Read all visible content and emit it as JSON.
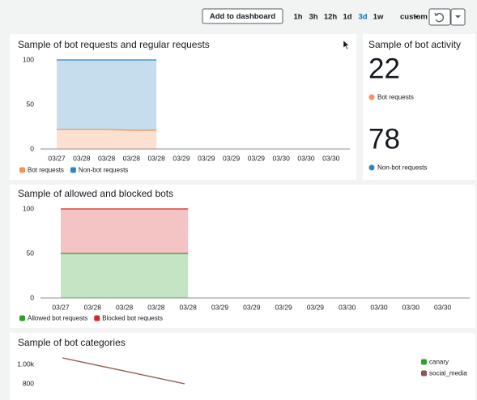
{
  "toolbar": {
    "button": "Add to dashboard",
    "ranges": [
      "1h",
      "3h",
      "12h",
      "1d",
      "3d",
      "1w",
      "custom"
    ],
    "active": 4
  },
  "widgets": [
    {
      "title": "Sample of bot requests and regular requests",
      "chart_data": {
        "type": "area",
        "stacked": true,
        "categories": [
          "03/27",
          "03/28",
          "03/28",
          "03/28",
          "03/28",
          "03/29",
          "03/29",
          "03/29",
          "03/29",
          "03/30",
          "03/30",
          "03/30"
        ],
        "series": [
          {
            "name": "Bot requests",
            "color": "#f89256",
            "values": [
              22,
              22,
              22,
              21,
              21,
              null,
              null,
              null,
              null,
              null,
              null,
              null
            ]
          },
          {
            "name": "Non-bot requests",
            "color": "#3184c2",
            "values": [
              78,
              78,
              78,
              79,
              79,
              null,
              null,
              null,
              null,
              null,
              null,
              null
            ]
          }
        ],
        "ylim": [
          0,
          100
        ],
        "yticks": [
          0,
          50,
          100
        ],
        "grid": false,
        "legend": "bottom"
      }
    },
    {
      "title": "Sample of bot activity",
      "stats": [
        {
          "value": 22,
          "label": "Bot requests",
          "color": "#f89256"
        },
        {
          "value": 78,
          "label": "Non-bot requests",
          "color": "#3184c2"
        }
      ]
    },
    {
      "title": "Sample of allowed and blocked bots",
      "chart_data": {
        "type": "area",
        "stacked": true,
        "categories": [
          "03/27",
          "03/28",
          "03/28",
          "03/28",
          "03/28",
          "03/29",
          "03/29",
          "03/29",
          "03/29",
          "03/30",
          "03/30",
          "03/30",
          "03/30"
        ],
        "series": [
          {
            "name": "Allowed bot requests",
            "color": "#2ca02c",
            "values": [
              50,
              50,
              50,
              50,
              50,
              null,
              null,
              null,
              null,
              null,
              null,
              null,
              null
            ]
          },
          {
            "name": "Blocked bot requests",
            "color": "#d62728",
            "values": [
              50,
              50,
              50,
              50,
              50,
              null,
              null,
              null,
              null,
              null,
              null,
              null,
              null
            ]
          }
        ],
        "ylim": [
          0,
          100
        ],
        "yticks": [
          0,
          50,
          100
        ],
        "grid": false,
        "legend": "bottom"
      }
    },
    {
      "title": "Sample of bot categories",
      "chart_data": {
        "type": "line",
        "categories": [
          null,
          null
        ],
        "series": [
          {
            "name": "canary",
            "color": "#2ca02c",
            "values": [
              null,
              null
            ]
          },
          {
            "name": "social_media",
            "color": "#8c564b",
            "values": [
              1067,
              800
            ]
          }
        ],
        "ylim": [
          700,
          1100
        ],
        "yticks": [
          800,
          {
            "value": 1000,
            "label": "1.00k"
          }
        ],
        "grid": false,
        "legend": "right"
      }
    }
  ]
}
